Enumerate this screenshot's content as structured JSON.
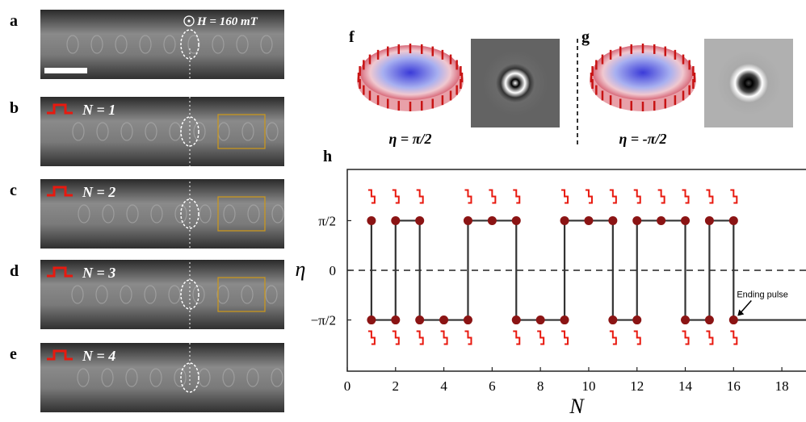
{
  "panels": [
    {
      "label": "a",
      "text": "H = 160 mT"
    },
    {
      "label": "b",
      "text": "N = 1"
    },
    {
      "label": "c",
      "text": "N = 2"
    },
    {
      "label": "d",
      "text": "N = 3"
    },
    {
      "label": "e",
      "text": "N = 4"
    }
  ],
  "insets": [
    {
      "label": "f",
      "caption": "η = π/2"
    },
    {
      "label": "g",
      "caption": "η = -π/2"
    }
  ],
  "chart_data": {
    "type": "line",
    "panel_label": "h",
    "x_label": "N",
    "y_label": "η",
    "xlim": [
      0,
      19
    ],
    "ylim": [
      -3.19,
      3.19
    ],
    "xticks": [
      0,
      2,
      4,
      6,
      8,
      10,
      12,
      14,
      16,
      18
    ],
    "yticks": [
      {
        "value": -1.5708,
        "label": "−π/2"
      },
      0,
      {
        "value": 1.5708,
        "label": "π/2"
      }
    ],
    "reference_line": 0,
    "color": "#333333",
    "marker_color": "#8b1414",
    "pulse_color": "#e8190f",
    "series": [
      {
        "x": [
          1,
          1,
          2,
          2,
          3,
          3,
          5,
          5,
          7,
          7,
          9,
          9,
          11,
          11,
          12,
          12,
          14,
          14,
          15,
          15,
          16,
          16,
          19
        ],
        "values": [
          1.5708,
          -1.5708,
          -1.5708,
          1.5708,
          1.5708,
          -1.5708,
          -1.5708,
          1.5708,
          1.5708,
          -1.5708,
          -1.5708,
          1.5708,
          1.5708,
          -1.5708,
          -1.5708,
          1.5708,
          1.5708,
          -1.5708,
          -1.5708,
          1.5708,
          1.5708,
          -1.5708,
          -1.5708
        ]
      },
      {
        "x": [
          1,
          1,
          2,
          2,
          3,
          3,
          4,
          5,
          5,
          6,
          7,
          7,
          8,
          9,
          9,
          10,
          11,
          11,
          12,
          12,
          13,
          14,
          14,
          15,
          15,
          16,
          16
        ],
        "values": [
          1.5708,
          -1.5708,
          1.5708,
          -1.5708,
          1.5708,
          -1.5708,
          -1.5708,
          1.5708,
          -1.5708,
          1.5708,
          1.5708,
          -1.5708,
          -1.5708,
          1.5708,
          -1.5708,
          1.5708,
          1.5708,
          -1.5708,
          1.5708,
          -1.5708,
          1.5708,
          1.5708,
          -1.5708,
          1.5708,
          -1.5708,
          1.5708,
          -1.5708
        ]
      }
    ],
    "annotation": "Ending pulse"
  }
}
